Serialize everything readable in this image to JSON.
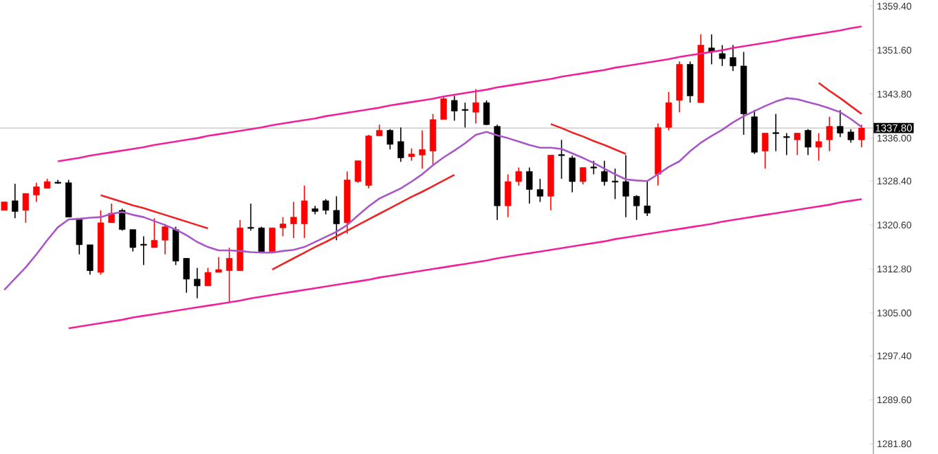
{
  "chart_data": {
    "type": "candlestick",
    "categories": [
      null,
      null,
      null,
      null,
      null,
      null,
      null,
      null,
      null,
      null,
      null,
      null,
      null,
      null,
      null,
      null,
      null,
      null,
      null,
      null,
      null,
      null,
      null,
      null,
      null,
      null,
      null,
      null,
      null,
      null,
      null,
      null,
      null,
      null,
      null,
      null,
      null,
      null,
      null,
      null,
      null,
      null,
      null,
      null,
      null,
      null,
      null,
      null,
      null,
      null,
      null,
      null,
      null,
      null,
      null,
      null,
      null,
      null,
      null,
      null,
      null,
      null,
      null,
      null,
      null,
      null,
      null,
      null,
      null,
      null,
      null,
      null,
      null,
      null,
      null,
      null,
      null,
      null,
      null,
      null,
      null
    ],
    "ohlc": [
      [
        1323.2,
        1324.7,
        1323.2,
        1324.7
      ],
      [
        1324.9,
        1327.9,
        1321.8,
        1323.0
      ],
      [
        1323.2,
        1326.2,
        1321.0,
        1326.2
      ],
      [
        1325.9,
        1328.1,
        1324.7,
        1327.4
      ],
      [
        1327.1,
        1328.8,
        1327.1,
        1328.3
      ],
      [
        1328.2,
        1328.6,
        1327.9,
        1328.0
      ],
      [
        1328.1,
        1328.6,
        1322.0,
        1322.0
      ],
      [
        1321.8,
        1321.8,
        1315.4,
        1317.1
      ],
      [
        1317.1,
        1317.1,
        1311.8,
        1312.5
      ],
      [
        1312.2,
        1323.2,
        1311.8,
        1321.0
      ],
      [
        1321.0,
        1324.4,
        1321.0,
        1322.7
      ],
      [
        1323.2,
        1323.5,
        1319.6,
        1319.8
      ],
      [
        1319.8,
        1319.8,
        1315.9,
        1316.6
      ],
      [
        1317.2,
        1318.6,
        1313.5,
        1317.0
      ],
      [
        1316.6,
        1321.8,
        1316.6,
        1317.9
      ],
      [
        1317.9,
        1320.8,
        1315.4,
        1320.3
      ],
      [
        1319.8,
        1320.3,
        1313.5,
        1314.2
      ],
      [
        1314.7,
        1314.7,
        1308.6,
        1311.0
      ],
      [
        1311.0,
        1313.0,
        1307.6,
        1309.8
      ],
      [
        1309.8,
        1313.0,
        1309.8,
        1312.2
      ],
      [
        1312.2,
        1314.9,
        1312.2,
        1312.7
      ],
      [
        1312.5,
        1316.6,
        1306.9,
        1314.7
      ],
      [
        1312.5,
        1321.5,
        1312.5,
        1320.1
      ],
      [
        1320.2,
        1324.4,
        1319.6,
        1320.0
      ],
      [
        1320.1,
        1320.3,
        1315.9,
        1315.9
      ],
      [
        1315.9,
        1320.1,
        1315.9,
        1320.1
      ],
      [
        1320.1,
        1322.0,
        1318.6,
        1320.8
      ],
      [
        1320.8,
        1324.7,
        1318.3,
        1322.0
      ],
      [
        1320.8,
        1327.6,
        1318.3,
        1324.9
      ],
      [
        1323.5,
        1324.0,
        1322.5,
        1323.0
      ],
      [
        1324.9,
        1325.2,
        1322.5,
        1323.2
      ],
      [
        1323.2,
        1325.7,
        1317.9,
        1320.8
      ],
      [
        1321.0,
        1330.1,
        1319.1,
        1328.6
      ],
      [
        1328.3,
        1332.0,
        1328.1,
        1332.0
      ],
      [
        1327.6,
        1336.6,
        1327.1,
        1336.4
      ],
      [
        1336.4,
        1338.4,
        1336.4,
        1337.4
      ],
      [
        1337.4,
        1337.6,
        1334.0,
        1334.9
      ],
      [
        1335.4,
        1337.9,
        1331.8,
        1332.5
      ],
      [
        1332.7,
        1334.2,
        1332.0,
        1333.2
      ],
      [
        1333.0,
        1337.4,
        1330.6,
        1334.0
      ],
      [
        1333.7,
        1340.3,
        1331.3,
        1339.3
      ],
      [
        1339.3,
        1343.5,
        1339.3,
        1343.0
      ],
      [
        1342.7,
        1343.5,
        1339.1,
        1340.8
      ],
      [
        1341.1,
        1342.3,
        1337.9,
        1340.9
      ],
      [
        1340.6,
        1344.7,
        1338.6,
        1342.3
      ],
      [
        1342.3,
        1342.7,
        1338.3,
        1338.4
      ],
      [
        1338.1,
        1338.4,
        1321.5,
        1324.0
      ],
      [
        1324.0,
        1329.6,
        1322.0,
        1328.3
      ],
      [
        1328.3,
        1330.8,
        1327.6,
        1330.1
      ],
      [
        1330.1,
        1330.8,
        1324.4,
        1326.9
      ],
      [
        1326.9,
        1328.8,
        1324.7,
        1325.7
      ],
      [
        1325.7,
        1333.0,
        1323.2,
        1333.0
      ],
      [
        1333.1,
        1335.7,
        1328.8,
        1332.9
      ],
      [
        1332.5,
        1332.9,
        1326.4,
        1328.3
      ],
      [
        1328.3,
        1330.8,
        1327.8,
        1330.8
      ],
      [
        1330.9,
        1332.0,
        1329.6,
        1330.7
      ],
      [
        1330.1,
        1332.0,
        1327.6,
        1328.3
      ],
      [
        1328.4,
        1330.6,
        1325.2,
        1328.2
      ],
      [
        1328.3,
        1333.0,
        1322.0,
        1325.7
      ],
      [
        1325.7,
        1325.9,
        1321.5,
        1324.0
      ],
      [
        1324.0,
        1328.3,
        1322.2,
        1322.7
      ],
      [
        1329.6,
        1338.6,
        1327.6,
        1337.9
      ],
      [
        1337.9,
        1344.2,
        1337.4,
        1342.3
      ],
      [
        1342.7,
        1349.6,
        1340.6,
        1349.1
      ],
      [
        1349.1,
        1349.6,
        1342.3,
        1343.5
      ],
      [
        1342.3,
        1354.4,
        1342.3,
        1352.5
      ],
      [
        1352.0,
        1354.4,
        1349.1,
        1351.3
      ],
      [
        1351.0,
        1352.5,
        1348.8,
        1350.1
      ],
      [
        1350.3,
        1352.5,
        1347.9,
        1348.8
      ],
      [
        1348.8,
        1351.3,
        1336.6,
        1340.3
      ],
      [
        1339.8,
        1341.0,
        1333.2,
        1333.5
      ],
      [
        1333.7,
        1336.9,
        1330.6,
        1336.9
      ],
      [
        1337.0,
        1340.3,
        1333.7,
        1336.8
      ],
      [
        1336.3,
        1336.9,
        1333.0,
        1336.1
      ],
      [
        1335.7,
        1336.9,
        1333.0,
        1336.9
      ],
      [
        1337.4,
        1337.6,
        1333.0,
        1334.4
      ],
      [
        1334.4,
        1336.9,
        1332.0,
        1335.4
      ],
      [
        1335.7,
        1339.8,
        1333.7,
        1338.1
      ],
      [
        1338.1,
        1341.0,
        1336.2,
        1336.9
      ],
      [
        1337.1,
        1337.6,
        1335.2,
        1335.7
      ],
      [
        1335.7,
        1338.4,
        1334.4,
        1337.8
      ]
    ],
    "series": [
      {
        "type": "line",
        "color": "#a855c8",
        "values": [
          1309.1,
          1311.1,
          1313.1,
          1315.4,
          1317.9,
          1320.2,
          1321.6,
          1321.7,
          1321.9,
          1322.0,
          1322.6,
          1322.9,
          1322.4,
          1322.0,
          1321.3,
          1320.6,
          1319.8,
          1318.8,
          1317.6,
          1316.7,
          1316.1,
          1316.1,
          1316.0,
          1315.8,
          1315.7,
          1315.7,
          1316.0,
          1316.2,
          1316.7,
          1317.6,
          1318.5,
          1319.4,
          1320.6,
          1322.3,
          1323.9,
          1325.3,
          1326.2,
          1327.1,
          1328.3,
          1329.6,
          1331.2,
          1332.6,
          1333.8,
          1335.1,
          1336.6,
          1337.1,
          1336.5,
          1336.0,
          1335.4,
          1334.8,
          1334.3,
          1334.3,
          1334.1,
          1333.3,
          1332.5,
          1331.6,
          1330.6,
          1329.6,
          1328.7,
          1328.5,
          1328.4,
          1329.6,
          1330.9,
          1331.9,
          1333.7,
          1335.2,
          1336.4,
          1337.5,
          1338.8,
          1339.9,
          1340.8,
          1341.7,
          1342.5,
          1343.1,
          1342.9,
          1342.4,
          1341.9,
          1341.3,
          1340.6,
          1339.4,
          1338.0
        ]
      },
      {
        "type": "line",
        "color": "#f0209a",
        "values": [
          null,
          null,
          null,
          null,
          null,
          1331.9,
          1332.2,
          1332.5,
          1332.9,
          1333.2,
          1333.5,
          1333.8,
          1334.1,
          1334.4,
          1334.8,
          1335.1,
          1335.4,
          1335.7,
          1336.0,
          1336.4,
          1336.7,
          1337.0,
          1337.3,
          1337.6,
          1337.9,
          1338.3,
          1338.6,
          1338.9,
          1339.2,
          1339.5,
          1339.9,
          1340.2,
          1340.5,
          1340.8,
          1341.1,
          1341.4,
          1341.8,
          1342.1,
          1342.4,
          1342.7,
          1343.0,
          1343.4,
          1343.7,
          1344.0,
          1344.3,
          1344.6,
          1345.0,
          1345.3,
          1345.6,
          1345.9,
          1346.2,
          1346.5,
          1346.9,
          1347.2,
          1347.5,
          1347.8,
          1348.1,
          1348.5,
          1348.8,
          1349.1,
          1349.4,
          1349.7,
          1350.0,
          1350.4,
          1350.7,
          1351.0,
          1351.3,
          1351.6,
          1352.0,
          1352.3,
          1352.6,
          1352.9,
          1353.2,
          1353.6,
          1353.9,
          1354.2,
          1354.5,
          1354.8,
          1355.1,
          1355.5,
          1355.8
        ]
      },
      {
        "type": "line",
        "color": "#f0209a",
        "values": [
          null,
          null,
          null,
          null,
          null,
          null,
          1302.3,
          1302.6,
          1302.9,
          1303.2,
          1303.5,
          1303.8,
          1304.2,
          1304.5,
          1304.8,
          1305.1,
          1305.4,
          1305.7,
          1306.0,
          1306.3,
          1306.6,
          1306.9,
          1307.2,
          1307.6,
          1307.9,
          1308.2,
          1308.5,
          1308.8,
          1309.1,
          1309.4,
          1309.7,
          1310.0,
          1310.3,
          1310.6,
          1310.9,
          1311.3,
          1311.6,
          1311.9,
          1312.2,
          1312.5,
          1312.8,
          1313.1,
          1313.4,
          1313.7,
          1314.0,
          1314.3,
          1314.7,
          1315.0,
          1315.3,
          1315.6,
          1315.9,
          1316.2,
          1316.5,
          1316.8,
          1317.1,
          1317.4,
          1317.7,
          1318.1,
          1318.4,
          1318.7,
          1319.0,
          1319.3,
          1319.6,
          1319.9,
          1320.2,
          1320.5,
          1320.8,
          1321.2,
          1321.5,
          1321.8,
          1322.1,
          1322.4,
          1322.7,
          1323.0,
          1323.3,
          1323.6,
          1323.9,
          1324.2,
          1324.6,
          1324.9,
          1325.2
        ]
      },
      {
        "type": "line",
        "color": "#ee2222",
        "values": [
          null,
          null,
          null,
          null,
          null,
          null,
          null,
          null,
          null,
          1325.9,
          1325.3,
          1324.7,
          1324.1,
          1323.6,
          1323.0,
          1322.4,
          1321.8,
          1321.2,
          1320.6,
          1320.0,
          null,
          null,
          null,
          null,
          null,
          null,
          null,
          null,
          null,
          null,
          null,
          null,
          null,
          null,
          null,
          null,
          null,
          null,
          null,
          null,
          null,
          null,
          null,
          null,
          null,
          null,
          null,
          null,
          null,
          null,
          null,
          null,
          null,
          null,
          null,
          null,
          null,
          null,
          null,
          null,
          null,
          null,
          null,
          null,
          null,
          null,
          null,
          null,
          null,
          null,
          null,
          null,
          null,
          null,
          null,
          null,
          null,
          null,
          null,
          null,
          null
        ]
      },
      {
        "type": "line",
        "color": "#ee2222",
        "values": [
          null,
          null,
          null,
          null,
          null,
          null,
          null,
          null,
          null,
          null,
          null,
          null,
          null,
          null,
          null,
          null,
          null,
          null,
          null,
          null,
          null,
          null,
          null,
          null,
          null,
          1312.7,
          1313.7,
          1314.7,
          1315.7,
          1316.7,
          1317.6,
          1318.6,
          1319.6,
          1320.6,
          1321.6,
          1322.6,
          1323.6,
          1324.6,
          1325.6,
          1326.5,
          1327.5,
          1328.5,
          1329.5,
          null,
          null,
          null,
          null,
          null,
          null,
          null,
          null,
          null,
          null,
          null,
          null,
          null,
          null,
          null,
          null,
          null,
          null,
          null,
          null,
          null,
          null,
          null,
          null,
          null,
          null,
          null,
          null,
          null,
          null,
          null,
          null,
          null,
          null,
          null,
          null,
          null,
          null
        ]
      },
      {
        "type": "line",
        "color": "#ee2222",
        "values": [
          null,
          null,
          null,
          null,
          null,
          null,
          null,
          null,
          null,
          null,
          null,
          null,
          null,
          null,
          null,
          null,
          null,
          null,
          null,
          null,
          null,
          null,
          null,
          null,
          null,
          null,
          null,
          null,
          null,
          null,
          null,
          null,
          null,
          null,
          null,
          null,
          null,
          null,
          null,
          null,
          null,
          null,
          null,
          null,
          null,
          null,
          null,
          null,
          null,
          null,
          null,
          1338.5,
          1337.8,
          1337.0,
          1336.3,
          1335.5,
          1334.8,
          1334.0,
          1333.2,
          null,
          null,
          null,
          null,
          null,
          null,
          null,
          null,
          null,
          null,
          null,
          null,
          null,
          null,
          null,
          null,
          null,
          null,
          null,
          null,
          null,
          null
        ]
      },
      {
        "type": "line",
        "color": "#ee2222",
        "values": [
          null,
          null,
          null,
          null,
          null,
          null,
          null,
          null,
          null,
          null,
          null,
          null,
          null,
          null,
          null,
          null,
          null,
          null,
          null,
          null,
          null,
          null,
          null,
          null,
          null,
          null,
          null,
          null,
          null,
          null,
          null,
          null,
          null,
          null,
          null,
          null,
          null,
          null,
          null,
          null,
          null,
          null,
          null,
          null,
          null,
          null,
          null,
          null,
          null,
          null,
          null,
          null,
          null,
          null,
          null,
          null,
          null,
          null,
          null,
          null,
          null,
          null,
          null,
          null,
          null,
          null,
          null,
          null,
          null,
          null,
          null,
          null,
          null,
          null,
          null,
          null,
          1345.8,
          1344.4,
          1343.1,
          1341.7,
          1340.3
        ]
      }
    ],
    "ylim": [
      1280.0,
      1360.5
    ],
    "yticks": [
      {
        "value": 1281.8,
        "label": "1281.80"
      },
      {
        "value": 1289.6,
        "label": "1289.60"
      },
      {
        "value": 1297.4,
        "label": "1297.40"
      },
      {
        "value": 1305.0,
        "label": "1305.00"
      },
      {
        "value": 1312.8,
        "label": "1312.80"
      },
      {
        "value": 1320.6,
        "label": "1320.60"
      },
      {
        "value": 1328.4,
        "label": "1328.40"
      },
      {
        "value": 1336.0,
        "label": "1336.00"
      },
      {
        "value": 1343.8,
        "label": "1343.80"
      },
      {
        "value": 1351.6,
        "label": "1351.60"
      },
      {
        "value": 1359.4,
        "label": "1359.40"
      }
    ],
    "ref_lines": [
      {
        "axis": "y",
        "value": 1337.8,
        "label": "1337.80",
        "color": "#c0c0c0"
      }
    ],
    "tick_labels": "y"
  }
}
